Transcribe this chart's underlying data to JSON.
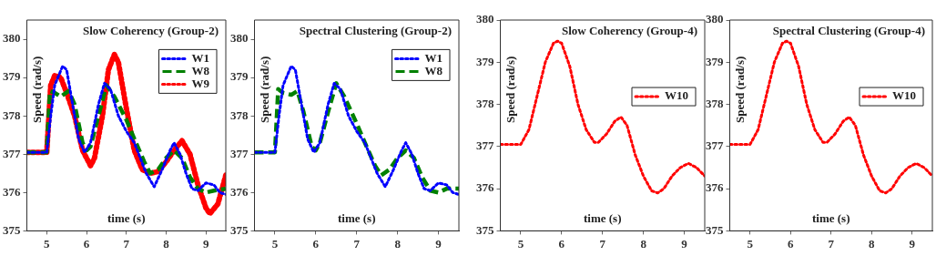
{
  "chart_data": [
    {
      "type": "line",
      "title": "Slow Coherency (Group-2)",
      "xlabel": "time (s)",
      "ylabel": "Speed (rad/s)",
      "xlim": [
        4.5,
        9.5
      ],
      "xticks": [
        5,
        6,
        7,
        8,
        9
      ],
      "ylim": [
        375,
        380.5
      ],
      "yticks": [
        375,
        376,
        377,
        378,
        379,
        380
      ],
      "legend": "top right",
      "grid": false,
      "series": [
        {
          "name": "W1",
          "color": "#0000ff",
          "line_style": "dotted",
          "x": [
            4.5,
            5.0,
            5.1,
            5.2,
            5.4,
            5.5,
            5.6,
            5.8,
            5.95,
            6.1,
            6.3,
            6.45,
            6.6,
            6.8,
            7.0,
            7.2,
            7.5,
            7.7,
            7.9,
            8.1,
            8.2,
            8.35,
            8.5,
            8.65,
            8.8,
            9.0,
            9.2,
            9.35,
            9.5
          ],
          "values": [
            377.05,
            377.05,
            378.0,
            378.8,
            379.3,
            379.2,
            378.6,
            377.4,
            377.05,
            377.3,
            378.3,
            378.85,
            378.7,
            378.0,
            377.6,
            377.3,
            376.5,
            376.15,
            376.6,
            377.1,
            377.3,
            377.0,
            376.5,
            376.1,
            376.05,
            376.25,
            376.2,
            376.0,
            375.95
          ]
        },
        {
          "name": "W8",
          "color": "#008000",
          "line_style": "dashed",
          "x": [
            4.5,
            5.0,
            5.08,
            5.2,
            5.35,
            5.55,
            5.7,
            5.9,
            6.0,
            6.1,
            6.3,
            6.5,
            6.7,
            7.0,
            7.2,
            7.45,
            7.6,
            7.8,
            8.0,
            8.2,
            8.4,
            8.6,
            8.8,
            9.0,
            9.2,
            9.5
          ],
          "values": [
            377.05,
            377.05,
            378.65,
            378.6,
            378.5,
            378.65,
            378.3,
            377.3,
            377.1,
            377.2,
            378.0,
            378.8,
            378.5,
            377.9,
            377.4,
            376.8,
            376.5,
            376.6,
            376.9,
            377.1,
            376.9,
            376.4,
            376.1,
            376.0,
            376.05,
            376.1
          ]
        },
        {
          "name": "W9",
          "color": "#ff0000",
          "line_style": "dotted",
          "x": [
            4.5,
            5.0,
            5.1,
            5.2,
            5.35,
            5.5,
            5.7,
            5.9,
            6.1,
            6.2,
            6.4,
            6.55,
            6.7,
            6.8,
            7.0,
            7.2,
            7.4,
            7.6,
            7.8,
            8.0,
            8.2,
            8.4,
            8.6,
            8.8,
            9.0,
            9.1,
            9.3,
            9.5
          ],
          "values": [
            377.05,
            377.05,
            378.8,
            379.05,
            379.0,
            378.6,
            378.0,
            377.1,
            376.7,
            376.9,
            378.0,
            379.2,
            379.6,
            379.4,
            378.2,
            377.1,
            376.6,
            376.5,
            376.55,
            376.8,
            377.1,
            377.35,
            377.0,
            376.2,
            375.6,
            375.45,
            375.7,
            376.45
          ]
        }
      ]
    },
    {
      "type": "line",
      "title": "Spectral Clustering (Group-2)",
      "xlabel": "time (s)",
      "ylabel": "Speed (rad/s)",
      "xlim": [
        4.5,
        9.5
      ],
      "xticks": [
        5,
        6,
        7,
        8,
        9
      ],
      "ylim": [
        375,
        380.5
      ],
      "yticks": [
        375,
        376,
        377,
        378,
        379,
        380
      ],
      "legend": "top right",
      "grid": false,
      "series": [
        {
          "name": "W1",
          "color": "#0000ff",
          "line_style": "dotted",
          "x": [
            4.5,
            5.0,
            5.1,
            5.2,
            5.4,
            5.5,
            5.6,
            5.8,
            5.95,
            6.1,
            6.3,
            6.45,
            6.6,
            6.8,
            7.0,
            7.2,
            7.5,
            7.7,
            7.9,
            8.1,
            8.2,
            8.35,
            8.5,
            8.65,
            8.8,
            9.0,
            9.2,
            9.35,
            9.5
          ],
          "values": [
            377.05,
            377.05,
            378.0,
            378.8,
            379.3,
            379.2,
            378.6,
            377.4,
            377.05,
            377.3,
            378.3,
            378.85,
            378.7,
            378.0,
            377.6,
            377.3,
            376.5,
            376.15,
            376.6,
            377.1,
            377.3,
            377.0,
            376.5,
            376.1,
            376.05,
            376.25,
            376.2,
            376.0,
            375.95
          ]
        },
        {
          "name": "W8",
          "color": "#008000",
          "line_style": "dashed",
          "x": [
            4.5,
            5.0,
            5.08,
            5.2,
            5.4,
            5.55,
            5.7,
            5.9,
            6.0,
            6.1,
            6.3,
            6.5,
            6.7,
            7.0,
            7.2,
            7.45,
            7.6,
            7.8,
            8.0,
            8.2,
            8.4,
            8.6,
            8.8,
            9.0,
            9.2,
            9.5
          ],
          "values": [
            377.05,
            377.05,
            378.7,
            378.6,
            378.55,
            378.65,
            378.1,
            377.2,
            377.1,
            377.3,
            378.1,
            378.85,
            378.5,
            377.8,
            377.3,
            376.7,
            376.45,
            376.6,
            376.9,
            377.1,
            376.9,
            376.4,
            376.05,
            376.0,
            376.1,
            376.1
          ]
        }
      ]
    },
    {
      "type": "line",
      "title": "Slow Coherency (Group-4)",
      "xlabel": "time (s)",
      "ylabel": "Speed (rad/s)",
      "xlim": [
        4.5,
        9.5
      ],
      "xticks": [
        5,
        6,
        7,
        8,
        9
      ],
      "ylim": [
        375,
        380
      ],
      "yticks": [
        375,
        376,
        377,
        378,
        379,
        380
      ],
      "legend": "right",
      "grid": false,
      "series": [
        {
          "name": "W10",
          "color": "#ff0000",
          "line_style": "dotted",
          "x": [
            4.5,
            5.0,
            5.2,
            5.4,
            5.6,
            5.8,
            5.9,
            6.0,
            6.2,
            6.4,
            6.6,
            6.8,
            6.9,
            7.1,
            7.3,
            7.45,
            7.6,
            7.8,
            8.0,
            8.2,
            8.35,
            8.5,
            8.7,
            8.9,
            9.1,
            9.3,
            9.5
          ],
          "values": [
            377.05,
            377.05,
            377.4,
            378.2,
            379.0,
            379.45,
            379.5,
            379.45,
            378.9,
            378.0,
            377.4,
            377.1,
            377.1,
            377.3,
            377.6,
            377.7,
            377.5,
            376.8,
            376.3,
            375.95,
            375.9,
            376.0,
            376.3,
            376.5,
            376.6,
            376.5,
            376.3
          ]
        }
      ]
    },
    {
      "type": "line",
      "title": "Spectral Clustering (Group-4)",
      "xlabel": "time (s)",
      "ylabel": "Speed (rad/s)",
      "xlim": [
        4.5,
        9.5
      ],
      "xticks": [
        5,
        6,
        7,
        8,
        9
      ],
      "ylim": [
        375,
        380
      ],
      "yticks": [
        375,
        376,
        377,
        378,
        379,
        380
      ],
      "legend": "right",
      "grid": false,
      "series": [
        {
          "name": "W10",
          "color": "#ff0000",
          "line_style": "dotted",
          "x": [
            4.5,
            5.0,
            5.2,
            5.4,
            5.6,
            5.8,
            5.9,
            6.0,
            6.2,
            6.4,
            6.6,
            6.8,
            6.9,
            7.1,
            7.3,
            7.45,
            7.6,
            7.8,
            8.0,
            8.2,
            8.35,
            8.5,
            8.7,
            8.9,
            9.1,
            9.3,
            9.5
          ],
          "values": [
            377.05,
            377.05,
            377.4,
            378.2,
            379.0,
            379.45,
            379.5,
            379.45,
            378.9,
            378.0,
            377.4,
            377.1,
            377.1,
            377.3,
            377.6,
            377.7,
            377.5,
            376.8,
            376.3,
            375.95,
            375.9,
            376.0,
            376.3,
            376.5,
            376.6,
            376.5,
            376.3
          ]
        }
      ]
    }
  ]
}
